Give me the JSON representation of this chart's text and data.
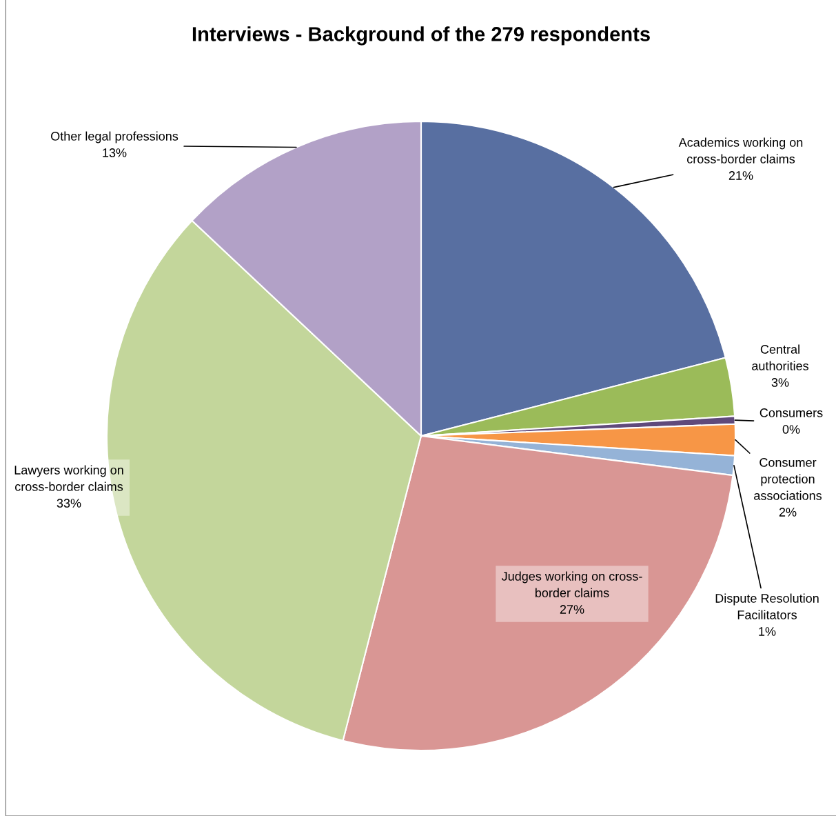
{
  "chart_data": {
    "type": "pie",
    "title": "Interviews - Background of the 279 respondents",
    "categories": [
      "Academics working on cross-border claims",
      "Central authorities",
      "Consumers",
      "Consumer protection associations",
      "Dispute Resolution Facilitators",
      "Judges working on cross-border claims",
      "Lawyers working on cross-border claims",
      "Other legal professions"
    ],
    "values": [
      21,
      3,
      0.4,
      1.6,
      1,
      27,
      33,
      13
    ],
    "value_labels": [
      "21%",
      "3%",
      "0%",
      "2%",
      "1%",
      "27%",
      "33%",
      "13%"
    ],
    "colors": [
      "#586fa1",
      "#9bbb59",
      "#604a7b",
      "#f79646",
      "#95b3d7",
      "#d99694",
      "#c3d69b",
      "#b2a1c7"
    ],
    "legend": false
  }
}
